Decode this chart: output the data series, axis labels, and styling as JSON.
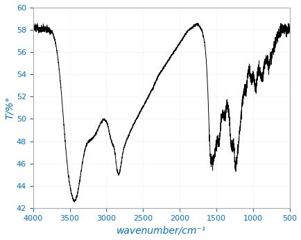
{
  "title": "",
  "xlabel": "wavenumber/cm⁻¹",
  "ylabel": "T/%°",
  "xlim": [
    4000,
    500
  ],
  "ylim": [
    42,
    60
  ],
  "yticks": [
    42,
    44,
    46,
    48,
    50,
    52,
    54,
    56,
    58,
    60
  ],
  "xticks": [
    4000,
    3500,
    3000,
    2500,
    2000,
    1500,
    1000,
    500
  ],
  "line_color": "#000000",
  "background_color": "#ffffff",
  "xlabel_color": "#0070c0",
  "ylabel_color": "#0070c0",
  "tick_color": "#0070c0",
  "control_points": [
    [
      4000,
      58.1
    ],
    [
      3980,
      58.2
    ],
    [
      3960,
      58.1
    ],
    [
      3940,
      58.2
    ],
    [
      3920,
      58.1
    ],
    [
      3900,
      58.1
    ],
    [
      3880,
      58.0
    ],
    [
      3860,
      58.1
    ],
    [
      3840,
      58.0
    ],
    [
      3820,
      58.1
    ],
    [
      3800,
      58.0
    ],
    [
      3780,
      58.0
    ],
    [
      3760,
      57.9
    ],
    [
      3740,
      57.8
    ],
    [
      3720,
      57.5
    ],
    [
      3700,
      57.0
    ],
    [
      3680,
      56.3
    ],
    [
      3660,
      55.4
    ],
    [
      3640,
      54.2
    ],
    [
      3620,
      52.8
    ],
    [
      3600,
      51.2
    ],
    [
      3580,
      49.5
    ],
    [
      3560,
      47.8
    ],
    [
      3540,
      46.3
    ],
    [
      3520,
      45.0
    ],
    [
      3500,
      44.1
    ],
    [
      3480,
      43.4
    ],
    [
      3460,
      42.9
    ],
    [
      3440,
      42.6
    ],
    [
      3420,
      42.7
    ],
    [
      3400,
      43.1
    ],
    [
      3380,
      43.8
    ],
    [
      3360,
      44.6
    ],
    [
      3340,
      45.5
    ],
    [
      3320,
      46.3
    ],
    [
      3300,
      47.0
    ],
    [
      3280,
      47.5
    ],
    [
      3260,
      47.8
    ],
    [
      3240,
      48.0
    ],
    [
      3220,
      48.1
    ],
    [
      3200,
      48.2
    ],
    [
      3180,
      48.3
    ],
    [
      3160,
      48.5
    ],
    [
      3140,
      48.7
    ],
    [
      3120,
      49.0
    ],
    [
      3100,
      49.3
    ],
    [
      3080,
      49.6
    ],
    [
      3060,
      49.8
    ],
    [
      3040,
      50.0
    ],
    [
      3020,
      49.9
    ],
    [
      3000,
      49.8
    ],
    [
      2980,
      49.4
    ],
    [
      2960,
      48.8
    ],
    [
      2940,
      48.2
    ],
    [
      2920,
      47.8
    ],
    [
      2900,
      47.5
    ],
    [
      2890,
      47.2
    ],
    [
      2880,
      46.8
    ],
    [
      2870,
      46.2
    ],
    [
      2860,
      45.6
    ],
    [
      2850,
      45.3
    ],
    [
      2840,
      45.1
    ],
    [
      2830,
      45.0
    ],
    [
      2820,
      45.2
    ],
    [
      2810,
      45.5
    ],
    [
      2800,
      45.9
    ],
    [
      2790,
      46.3
    ],
    [
      2780,
      46.8
    ],
    [
      2770,
      47.1
    ],
    [
      2760,
      47.4
    ],
    [
      2750,
      47.6
    ],
    [
      2730,
      48.0
    ],
    [
      2710,
      48.3
    ],
    [
      2690,
      48.6
    ],
    [
      2670,
      48.9
    ],
    [
      2650,
      49.2
    ],
    [
      2630,
      49.5
    ],
    [
      2610,
      49.7
    ],
    [
      2590,
      50.0
    ],
    [
      2570,
      50.2
    ],
    [
      2550,
      50.5
    ],
    [
      2530,
      50.7
    ],
    [
      2510,
      51.0
    ],
    [
      2490,
      51.2
    ],
    [
      2470,
      51.5
    ],
    [
      2450,
      51.7
    ],
    [
      2430,
      52.0
    ],
    [
      2410,
      52.2
    ],
    [
      2390,
      52.5
    ],
    [
      2370,
      52.7
    ],
    [
      2350,
      53.0
    ],
    [
      2330,
      53.3
    ],
    [
      2310,
      53.6
    ],
    [
      2290,
      53.9
    ],
    [
      2270,
      54.1
    ],
    [
      2250,
      54.3
    ],
    [
      2230,
      54.5
    ],
    [
      2210,
      54.7
    ],
    [
      2190,
      54.9
    ],
    [
      2170,
      55.1
    ],
    [
      2150,
      55.3
    ],
    [
      2130,
      55.5
    ],
    [
      2110,
      55.7
    ],
    [
      2090,
      55.9
    ],
    [
      2070,
      56.1
    ],
    [
      2050,
      56.3
    ],
    [
      2030,
      56.5
    ],
    [
      2010,
      56.7
    ],
    [
      1990,
      56.9
    ],
    [
      1970,
      57.1
    ],
    [
      1950,
      57.3
    ],
    [
      1930,
      57.5
    ],
    [
      1910,
      57.7
    ],
    [
      1890,
      57.9
    ],
    [
      1870,
      58.0
    ],
    [
      1850,
      58.1
    ],
    [
      1830,
      58.2
    ],
    [
      1810,
      58.3
    ],
    [
      1800,
      58.4
    ],
    [
      1790,
      58.4
    ],
    [
      1780,
      58.5
    ],
    [
      1770,
      58.5
    ],
    [
      1760,
      58.5
    ],
    [
      1750,
      58.5
    ],
    [
      1740,
      58.4
    ],
    [
      1730,
      58.3
    ],
    [
      1720,
      58.2
    ],
    [
      1710,
      58.1
    ],
    [
      1700,
      58.0
    ],
    [
      1690,
      57.8
    ],
    [
      1680,
      57.5
    ],
    [
      1670,
      57.2
    ],
    [
      1660,
      56.8
    ],
    [
      1650,
      56.3
    ],
    [
      1640,
      55.5
    ],
    [
      1630,
      54.5
    ],
    [
      1620,
      53.2
    ],
    [
      1610,
      51.5
    ],
    [
      1600,
      49.5
    ],
    [
      1590,
      47.8
    ],
    [
      1580,
      46.7
    ],
    [
      1570,
      46.2
    ],
    [
      1560,
      46.0
    ],
    [
      1550,
      46.1
    ],
    [
      1540,
      46.3
    ],
    [
      1530,
      46.5
    ],
    [
      1520,
      46.8
    ],
    [
      1510,
      47.2
    ],
    [
      1500,
      47.5
    ],
    [
      1490,
      48.0
    ],
    [
      1480,
      48.5
    ],
    [
      1470,
      49.0
    ],
    [
      1460,
      49.3
    ],
    [
      1450,
      49.5
    ],
    [
      1440,
      49.8
    ],
    [
      1430,
      50.0
    ],
    [
      1420,
      50.2
    ],
    [
      1410,
      50.5
    ],
    [
      1400,
      50.3
    ],
    [
      1390,
      50.8
    ],
    [
      1380,
      51.0
    ],
    [
      1370,
      51.2
    ],
    [
      1360,
      51.5
    ],
    [
      1350,
      51.3
    ],
    [
      1340,
      51.0
    ],
    [
      1330,
      50.7
    ],
    [
      1320,
      50.5
    ],
    [
      1310,
      50.0
    ],
    [
      1300,
      49.5
    ],
    [
      1290,
      49.0
    ],
    [
      1280,
      48.3
    ],
    [
      1270,
      48.0
    ],
    [
      1260,
      47.8
    ],
    [
      1250,
      47.5
    ],
    [
      1240,
      47.3
    ],
    [
      1230,
      47.0
    ],
    [
      1220,
      46.8
    ],
    [
      1210,
      47.0
    ],
    [
      1200,
      47.5
    ],
    [
      1190,
      48.2
    ],
    [
      1180,
      49.0
    ],
    [
      1170,
      49.8
    ],
    [
      1160,
      50.5
    ],
    [
      1150,
      51.2
    ],
    [
      1140,
      51.8
    ],
    [
      1130,
      52.3
    ],
    [
      1120,
      52.8
    ],
    [
      1110,
      53.2
    ],
    [
      1100,
      53.6
    ],
    [
      1090,
      53.9
    ],
    [
      1080,
      54.2
    ],
    [
      1070,
      54.4
    ],
    [
      1060,
      54.6
    ],
    [
      1050,
      54.5
    ],
    [
      1040,
      54.4
    ],
    [
      1030,
      54.5
    ],
    [
      1020,
      54.3
    ],
    [
      1010,
      54.2
    ],
    [
      1000,
      54.0
    ],
    [
      990,
      53.8
    ],
    [
      980,
      53.5
    ],
    [
      970,
      53.3
    ],
    [
      960,
      53.5
    ],
    [
      950,
      53.8
    ],
    [
      940,
      54.0
    ],
    [
      930,
      54.2
    ],
    [
      920,
      54.5
    ],
    [
      910,
      54.3
    ],
    [
      900,
      54.0
    ],
    [
      890,
      53.8
    ],
    [
      880,
      54.0
    ],
    [
      870,
      54.3
    ],
    [
      860,
      54.5
    ],
    [
      850,
      54.8
    ],
    [
      840,
      55.0
    ],
    [
      830,
      55.2
    ],
    [
      820,
      55.4
    ],
    [
      810,
      55.3
    ],
    [
      800,
      55.2
    ],
    [
      790,
      55.0
    ],
    [
      780,
      55.2
    ],
    [
      770,
      55.3
    ],
    [
      760,
      55.5
    ],
    [
      750,
      55.6
    ],
    [
      740,
      55.8
    ],
    [
      730,
      56.0
    ],
    [
      720,
      56.2
    ],
    [
      710,
      56.5
    ],
    [
      700,
      56.8
    ],
    [
      690,
      57.0
    ],
    [
      680,
      57.2
    ],
    [
      670,
      57.4
    ],
    [
      660,
      57.5
    ],
    [
      650,
      57.6
    ],
    [
      640,
      57.7
    ],
    [
      630,
      57.8
    ],
    [
      620,
      57.9
    ],
    [
      610,
      58.0
    ],
    [
      600,
      58.0
    ],
    [
      590,
      58.1
    ],
    [
      580,
      58.1
    ],
    [
      570,
      58.1
    ],
    [
      560,
      58.0
    ],
    [
      550,
      58.0
    ],
    [
      540,
      58.0
    ],
    [
      530,
      58.0
    ],
    [
      520,
      58.0
    ],
    [
      510,
      58.0
    ],
    [
      500,
      58.0
    ]
  ]
}
